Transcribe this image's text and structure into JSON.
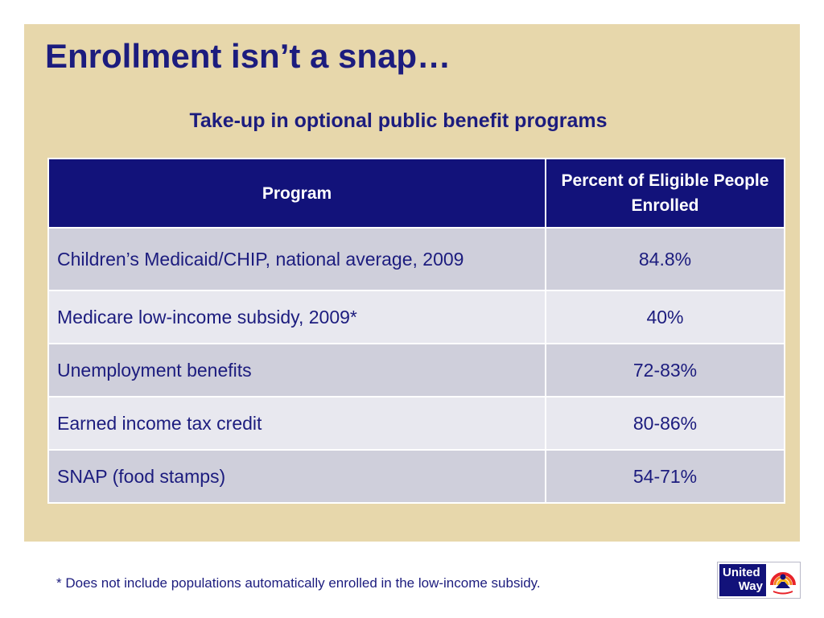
{
  "slide": {
    "title": "Enrollment isn’t a snap…",
    "subtitle": "Take-up in optional public benefit programs",
    "footnote": "* Does not include populations automatically enrolled in the low-income subsidy."
  },
  "table": {
    "headers": [
      "Program",
      "Percent of Eligible People Enrolled"
    ],
    "rows": [
      {
        "program": "Children’s Medicaid/CHIP, national average, 2009",
        "percent": "84.8%"
      },
      {
        "program": "Medicare low-income subsidy, 2009*",
        "percent": "40%"
      },
      {
        "program": "Unemployment benefits",
        "percent": "72-83%"
      },
      {
        "program": "Earned income tax credit",
        "percent": "80-86%"
      },
      {
        "program": "SNAP (food stamps)",
        "percent": "54-71%"
      }
    ]
  },
  "logo": {
    "line1": "United",
    "line2": "Way",
    "icon": "united-way-hand-rainbow-icon"
  },
  "colors": {
    "panel_background": "#e7d7ab",
    "title_text": "#1c1c7e",
    "header_background": "#12127a",
    "row_dark": "#cfcfdb",
    "row_light": "#e8e8ef"
  }
}
